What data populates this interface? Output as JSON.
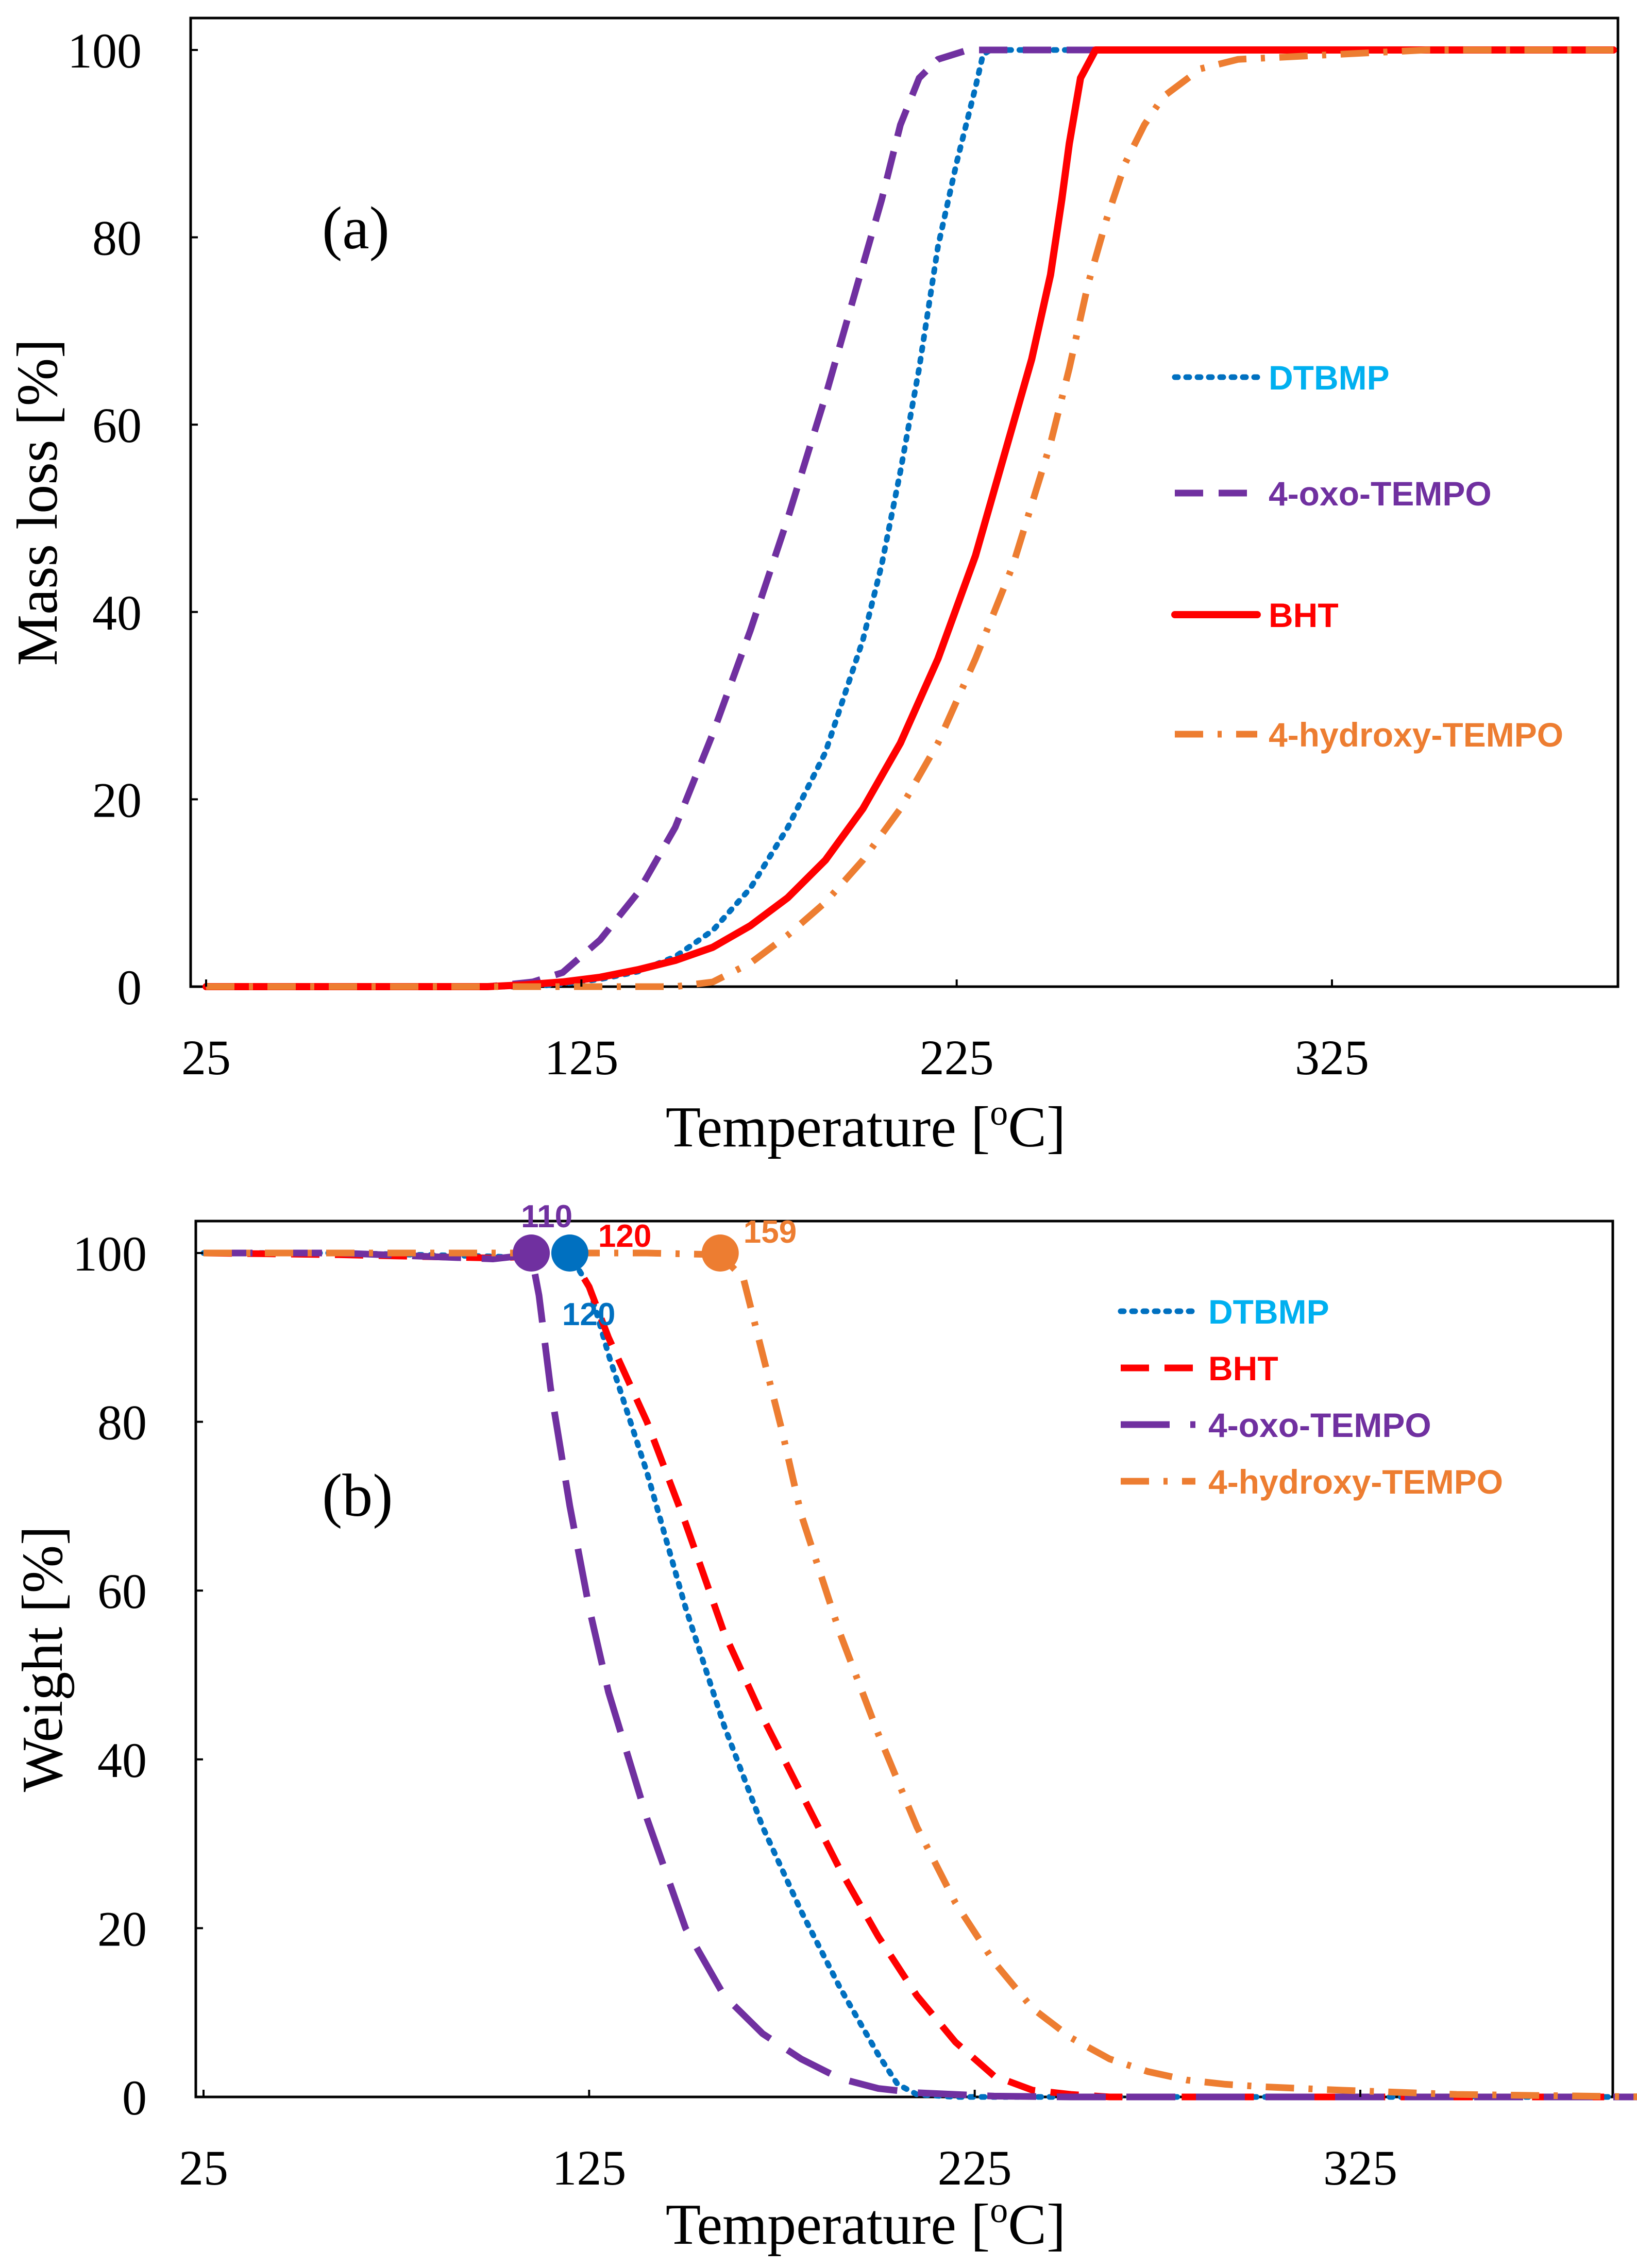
{
  "chart_data": [
    {
      "type": "line",
      "panel_label": "(a)",
      "xlabel": "Temperature [",
      "xlabel_sup": "o",
      "xlabel_tail": "C]",
      "ylabel": "Mass loss [%]",
      "xlim": [
        25,
        400
      ],
      "ylim": [
        0,
        100
      ],
      "xticks": [
        "25",
        "125",
        "225",
        "325"
      ],
      "yticks": [
        "0",
        "20",
        "40",
        "60",
        "80",
        "100"
      ],
      "grid": false,
      "legend_position": "right",
      "series": [
        {
          "name": "DTBMP",
          "color": "#0070C0",
          "style": "dotted",
          "x": [
            25,
            60,
            100,
            112,
            120,
            130,
            140,
            150,
            160,
            170,
            180,
            190,
            200,
            205,
            210,
            215,
            220,
            225,
            230,
            232,
            234,
            250,
            300,
            350,
            400
          ],
          "y": [
            0,
            0,
            0,
            0,
            0.3,
            0.8,
            1.6,
            3.2,
            6,
            10.5,
            17,
            25,
            37,
            45,
            55,
            66,
            79,
            88,
            96,
            99.5,
            100,
            100,
            100,
            100,
            100
          ]
        },
        {
          "name": "4-oxo-TEMPO",
          "color": "#7030A0",
          "style": "dashed",
          "x": [
            25,
            60,
            100,
            112,
            120,
            130,
            140,
            150,
            160,
            170,
            180,
            190,
            200,
            205,
            210,
            215,
            220,
            228,
            235,
            250,
            300,
            350,
            400
          ],
          "y": [
            0,
            0,
            0,
            0.5,
            1.5,
            5,
            10,
            17,
            27,
            38,
            50,
            63,
            77,
            84,
            92,
            97,
            99,
            100,
            100,
            100,
            100,
            100,
            100
          ]
        },
        {
          "name": "BHT",
          "color": "#FF0000",
          "style": "solid",
          "x": [
            25,
            60,
            100,
            110,
            120,
            130,
            140,
            150,
            160,
            170,
            180,
            190,
            200,
            210,
            220,
            230,
            240,
            245,
            250,
            253,
            255,
            258,
            262,
            270,
            300,
            350,
            400
          ],
          "y": [
            0,
            0,
            0,
            0.2,
            0.5,
            1,
            1.8,
            2.8,
            4.2,
            6.5,
            9.5,
            13.5,
            19,
            26,
            35,
            46,
            60,
            67,
            76,
            84,
            90,
            97,
            100,
            100,
            100,
            100,
            100
          ]
        },
        {
          "name": "4-hydroxy-TEMPO",
          "color": "#ED7D31",
          "style": "dashdot",
          "x": [
            25,
            60,
            100,
            140,
            150,
            160,
            170,
            180,
            190,
            200,
            210,
            220,
            230,
            240,
            250,
            255,
            260,
            265,
            270,
            275,
            280,
            290,
            300,
            350,
            400
          ],
          "y": [
            0,
            0,
            0,
            0,
            0,
            0.5,
            2.5,
            5.5,
            9,
            13.5,
            19,
            26,
            35,
            45,
            58,
            66,
            75,
            82,
            88,
            92,
            95,
            98,
            99,
            100,
            100
          ]
        }
      ]
    },
    {
      "type": "line",
      "panel_label": "(b)",
      "xlabel": "Temperature [",
      "xlabel_sup": "o",
      "xlabel_tail": "C]",
      "ylabel": "Weight [%]",
      "xlim": [
        25,
        400
      ],
      "ylim": [
        0,
        100
      ],
      "xticks": [
        "25",
        "125",
        "225",
        "325"
      ],
      "yticks": [
        "0",
        "20",
        "40",
        "60",
        "80",
        "100"
      ],
      "grid": false,
      "legend_position": "top-right",
      "series": [
        {
          "name": "DTBMP",
          "color": "#0070C0",
          "style": "dotted",
          "x": [
            25,
            60,
            100,
            110,
            120,
            125,
            130,
            140,
            150,
            160,
            170,
            180,
            190,
            200,
            205,
            210,
            220,
            250,
            300,
            350,
            400
          ],
          "y": [
            100,
            100,
            99.6,
            99.4,
            99.8,
            96,
            88,
            74,
            58,
            44,
            32,
            22,
            13,
            5,
            1.5,
            0.3,
            0,
            0,
            0,
            0,
            0
          ]
        },
        {
          "name": "BHT",
          "color": "#FF0000",
          "style": "dashed",
          "x": [
            25,
            60,
            100,
            110,
            120,
            125,
            130,
            140,
            150,
            160,
            170,
            180,
            190,
            200,
            210,
            220,
            230,
            240,
            250,
            260,
            300,
            350,
            400
          ],
          "y": [
            100,
            99.8,
            99.4,
            99.6,
            99.8,
            96,
            90,
            80,
            68,
            55,
            45,
            36,
            27,
            19,
            12,
            6.5,
            2.5,
            0.8,
            0.3,
            0,
            0,
            0,
            0
          ]
        },
        {
          "name": "4-oxo-TEMPO",
          "color": "#7030A0",
          "style": "longdash",
          "x": [
            25,
            60,
            100,
            110,
            112,
            115,
            120,
            125,
            130,
            140,
            150,
            160,
            170,
            180,
            190,
            200,
            210,
            220,
            230,
            250,
            300,
            350,
            400
          ],
          "y": [
            100,
            100,
            99.3,
            99.8,
            95,
            84,
            70,
            58,
            48,
            33,
            20,
            12,
            7.5,
            4.5,
            2.2,
            1,
            0.5,
            0.3,
            0.1,
            0,
            0,
            0,
            0
          ]
        },
        {
          "name": "4-hydroxy-TEMPO",
          "color": "#ED7D31",
          "style": "dashdot",
          "x": [
            25,
            60,
            100,
            140,
            159,
            165,
            170,
            175,
            180,
            190,
            200,
            210,
            220,
            230,
            240,
            250,
            260,
            270,
            280,
            290,
            300,
            320,
            350,
            400
          ],
          "y": [
            100,
            100,
            100,
            100,
            99.8,
            97,
            88,
            79,
            69,
            55,
            43,
            32,
            23,
            16,
            10.5,
            7,
            4.5,
            3,
            2,
            1.5,
            1.2,
            0.8,
            0.3,
            0
          ]
        }
      ],
      "annotations": [
        {
          "text": "110",
          "x": 110,
          "y": 100,
          "color": "#7030A0"
        },
        {
          "text": "120",
          "x": 120,
          "y": 100,
          "color": "#FF0000"
        },
        {
          "text": "120",
          "x": 120,
          "y": 100,
          "color": "#0070C0"
        },
        {
          "text": "159",
          "x": 159,
          "y": 100,
          "color": "#ED7D31"
        }
      ]
    }
  ]
}
